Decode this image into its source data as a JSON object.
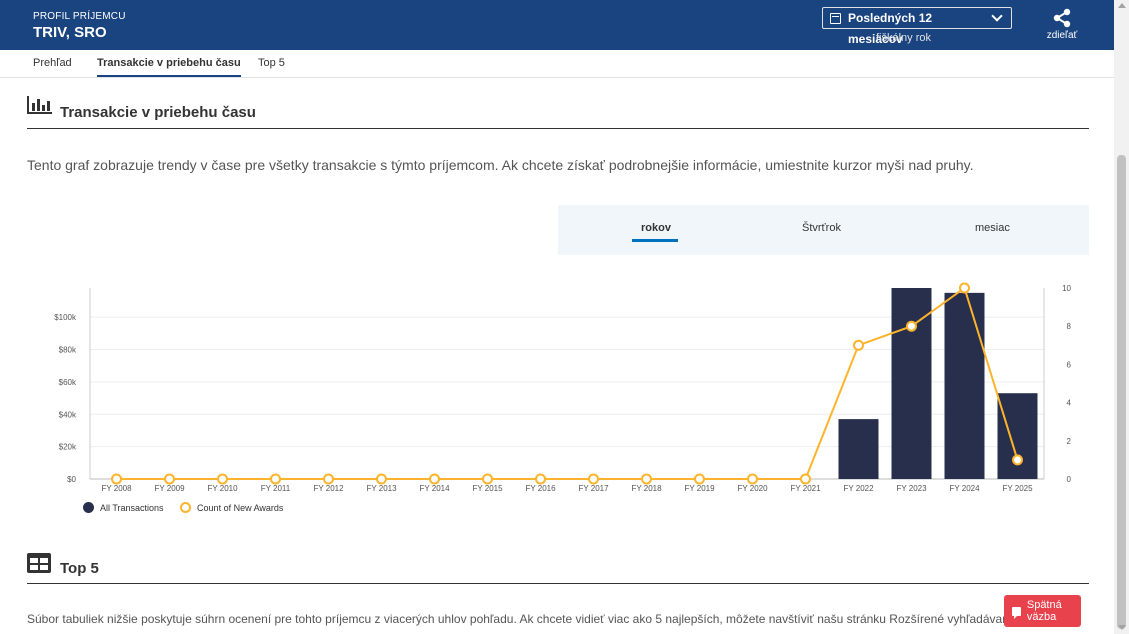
{
  "header": {
    "kicker": "PROFIL PRÍJEMCU",
    "recipient_name": "TRIV, SRO",
    "period_value_line1": "Posledných 12",
    "period_value_line2": "mesiacov",
    "period_sub": "fiškálny rok",
    "share_label": "zdieľať"
  },
  "subnav": {
    "tabs": [
      {
        "label": "Prehľad",
        "active": false
      },
      {
        "label": "Transakcie v priebehu času",
        "active": true
      },
      {
        "label": "Top 5",
        "active": false
      }
    ]
  },
  "section_transactions": {
    "title": "Transakcie v priebehu času",
    "description": "Tento graf zobrazuje trendy v čase pre všetky transakcie s týmto príjemcom. Ak chcete získať podrobnejšie informácie, umiestnite kurzor myši nad pruhy.",
    "period_tabs": [
      {
        "label": "rokov",
        "active": true
      },
      {
        "label": "Štvrťrok",
        "active": false
      },
      {
        "label": "mesiac",
        "active": false
      }
    ]
  },
  "chart_data": {
    "type": "bar",
    "categories": [
      "FY 2008",
      "FY 2009",
      "FY 2010",
      "FY 2011",
      "FY 2012",
      "FY 2013",
      "FY 2014",
      "FY 2015",
      "FY 2016",
      "FY 2017",
      "FY 2018",
      "FY 2019",
      "FY 2020",
      "FY 2021",
      "FY 2022",
      "FY 2023",
      "FY 2024",
      "FY 2025"
    ],
    "series": [
      {
        "name": "All Transactions",
        "type": "bar",
        "axis": "left",
        "color": "#272f4c",
        "values": [
          0,
          0,
          0,
          0,
          0,
          0,
          0,
          0,
          0,
          0,
          0,
          0,
          0,
          0,
          37000,
          118000,
          115000,
          53000
        ]
      },
      {
        "name": "Count of New Awards",
        "type": "line",
        "axis": "right",
        "color": "#fdb32b",
        "values": [
          0,
          0,
          0,
          0,
          0,
          0,
          0,
          0,
          0,
          0,
          0,
          0,
          0,
          0,
          7,
          8,
          10,
          1
        ]
      }
    ],
    "y_left": {
      "ticks": [
        0,
        20000,
        40000,
        60000,
        80000,
        100000
      ],
      "tick_labels": [
        "$0",
        "$20k",
        "$40k",
        "$60k",
        "$80k",
        "$100k"
      ],
      "max": 118000
    },
    "y_right": {
      "ticks": [
        0,
        2,
        4,
        6,
        8,
        10
      ],
      "tick_labels": [
        "0",
        "2",
        "4",
        "6",
        "8",
        "10"
      ],
      "max": 10
    },
    "legend": "bottom-left",
    "grid": true
  },
  "section_top5": {
    "title": "Top 5",
    "description": "Súbor tabuliek nižšie poskytuje súhrn ocenení pre tohto príjemcu z viacerých uhlov pohľadu. Ak chcete vidieť viac ako 5 najlepších, môžete navštíviť našu stránku Rozšírené vyhľadávanie."
  },
  "feedback": {
    "label": "Spätná väzba"
  },
  "colors": {
    "header_bg": "#1a4480",
    "bar": "#272f4c",
    "line": "#fdb32b",
    "accent": "#0071bc",
    "feedback_bg": "#e8424d"
  }
}
